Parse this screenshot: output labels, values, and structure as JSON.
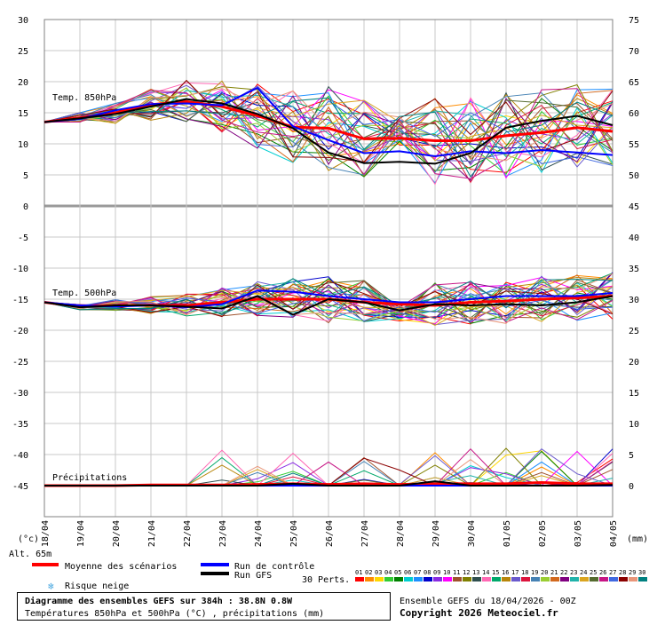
{
  "chart_data": [
    {
      "type": "line",
      "label": "Temp. 850hPa",
      "x": [
        "18/04",
        "19/04",
        "20/04",
        "21/04",
        "22/04",
        "23/04",
        "24/04",
        "25/04",
        "26/04",
        "27/04",
        "28/04",
        "29/04",
        "30/04",
        "01/05",
        "02/05",
        "03/05",
        "04/05"
      ],
      "ylim": [
        0,
        30
      ],
      "series": [
        {
          "name": "Moyenne des scénarios",
          "values": [
            13.5,
            14.2,
            15,
            16.3,
            16.8,
            16,
            14.5,
            12.7,
            12.5,
            10.8,
            10.9,
            10.5,
            10.5,
            11.3,
            11.8,
            12.6,
            12
          ]
        },
        {
          "name": "Run de contrôle",
          "values": [
            13.5,
            14,
            15.4,
            16.4,
            16.5,
            16.2,
            19,
            12.8,
            10.6,
            8.5,
            8.8,
            8,
            8.8,
            8.5,
            9,
            8.6,
            8.2
          ]
        },
        {
          "name": "Run GFS",
          "values": [
            13.5,
            14.1,
            14.8,
            16,
            17.2,
            16.5,
            14.8,
            12.5,
            8.6,
            6.9,
            7.1,
            6.8,
            8.5,
            12.6,
            13.7,
            14.5,
            13
          ]
        }
      ]
    },
    {
      "type": "line",
      "label": "Temp. 500hPa",
      "x": [
        "18/04",
        "19/04",
        "20/04",
        "21/04",
        "22/04",
        "23/04",
        "24/04",
        "25/04",
        "26/04",
        "27/04",
        "28/04",
        "29/04",
        "30/04",
        "01/05",
        "02/05",
        "03/05",
        "04/05"
      ],
      "ylim": [
        -20,
        -10
      ],
      "series": [
        {
          "name": "Moyenne des scénarios",
          "values": [
            -15.5,
            -16.2,
            -16,
            -16,
            -16,
            -15.5,
            -15,
            -15,
            -15,
            -15.5,
            -15.8,
            -16,
            -15.5,
            -15.3,
            -15,
            -14.8,
            -14.5
          ]
        },
        {
          "name": "Run de contrôle",
          "values": [
            -15.5,
            -16,
            -16.2,
            -16,
            -16.3,
            -15.8,
            -13.6,
            -13.8,
            -14.5,
            -15,
            -15.5,
            -15.5,
            -15,
            -14.5,
            -14.5,
            -14.5,
            -14
          ]
        },
        {
          "name": "Run GFS",
          "values": [
            -15.5,
            -16.3,
            -16,
            -16,
            -16.2,
            -16.5,
            -14.5,
            -17.5,
            -15,
            -15.5,
            -16.8,
            -15.8,
            -16,
            -15.8,
            -16,
            -15.5,
            -14.5
          ]
        }
      ]
    },
    {
      "type": "line",
      "label": "Précipitations",
      "x": [
        "18/04",
        "19/04",
        "20/04",
        "21/04",
        "22/04",
        "23/04",
        "24/04",
        "25/04",
        "26/04",
        "27/04",
        "28/04",
        "29/04",
        "30/04",
        "01/05",
        "02/05",
        "03/05",
        "04/05"
      ],
      "ylim": [
        0,
        10
      ],
      "series": [
        {
          "name": "Moyenne des scénarios",
          "values": [
            0,
            0,
            0,
            0.1,
            0.1,
            0.1,
            0.2,
            0.3,
            0.2,
            0.3,
            0.2,
            0.3,
            0.3,
            0.3,
            0.5,
            0.3,
            0.3
          ]
        },
        {
          "name": "Run de contrôle",
          "values": [
            0,
            0,
            0,
            0,
            0,
            0,
            0,
            0,
            0,
            0,
            0,
            0,
            0,
            0,
            0,
            0,
            0
          ]
        },
        {
          "name": "Run GFS",
          "values": [
            0,
            0,
            0,
            0,
            0,
            0,
            0,
            0.3,
            0,
            0,
            0,
            0.7,
            0,
            0,
            0,
            0,
            0.1
          ]
        }
      ]
    }
  ],
  "axes": {
    "left_ticks": [
      "30",
      "25",
      "20",
      "15",
      "10",
      "5",
      "0",
      "-5",
      "-10",
      "-15",
      "-20",
      "-25",
      "-30",
      "-35",
      "-40",
      "-45"
    ],
    "right_ticks": [
      "75",
      "70",
      "65",
      "60",
      "55",
      "50",
      "45",
      "40",
      "35",
      "30",
      "25",
      "20",
      "15",
      "10",
      "5",
      "0"
    ],
    "left_unit": "(°c)",
    "right_unit": "(mm)",
    "altitude": "Alt. 65m"
  },
  "legend": {
    "mean": "Moyenne des scénarios",
    "control": "Run de contrôle",
    "gfs": "Run GFS",
    "snow": "Risque neige",
    "perts_label": "30 Perts.",
    "pert_numbers": [
      "01",
      "02",
      "03",
      "04",
      "05",
      "06",
      "07",
      "08",
      "09",
      "10",
      "11",
      "12",
      "13",
      "14",
      "15",
      "16",
      "17",
      "18",
      "19",
      "20",
      "21",
      "22",
      "23",
      "24",
      "25",
      "26",
      "27",
      "28",
      "29",
      "30"
    ],
    "colors": {
      "mean": "#ff0000",
      "control": "#0000ff",
      "gfs": "#000000"
    }
  },
  "footer": {
    "title": "Diagramme des ensembles GEFS sur 384h : 38.8N 0.8W",
    "subtitle": "Températures 850hPa et 500hPa (°C) , précipitations (mm)",
    "run": "Ensemble GEFS du 18/04/2026 - 00Z",
    "copyright": "Copyright 2026 Meteociel.fr"
  },
  "pert_colors": [
    "#ff0000",
    "#ff8c00",
    "#ffd700",
    "#32cd32",
    "#008000",
    "#00ced1",
    "#1e90ff",
    "#0000cd",
    "#8a2be2",
    "#ff00ff",
    "#a0522d",
    "#808000",
    "#2f4f4f",
    "#ff69b4",
    "#00a86b",
    "#b8860b",
    "#6a5acd",
    "#dc143c",
    "#4682b4",
    "#9acd32",
    "#d2691e",
    "#800080",
    "#20b2aa",
    "#daa520",
    "#556b2f",
    "#c71585",
    "#4169e1",
    "#8b0000",
    "#e9967a",
    "#008080"
  ]
}
